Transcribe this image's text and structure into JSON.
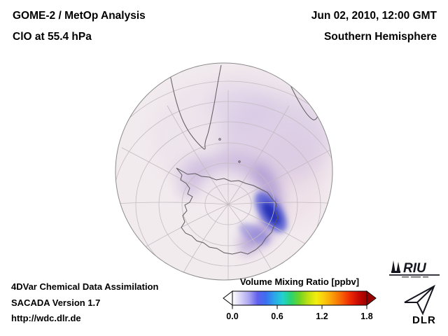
{
  "header": {
    "left": {
      "line1": "GOME-2 / MetOp Analysis",
      "line2": "ClO at 55.4 hPa"
    },
    "right": {
      "line1": "Jun 02, 2010, 12:00 GMT",
      "line2": "Southern Hemisphere"
    }
  },
  "colorbar": {
    "title": "Volume Mixing Ratio [ppbv]",
    "ticks": [
      "0.0",
      "0.6",
      "1.2",
      "1.8"
    ],
    "range": [
      0.0,
      1.8
    ],
    "under_color": "#ffffff",
    "over_color": "#9b0000",
    "gradient": [
      "#ffffff",
      "#d9d2f6",
      "#a9a4f2",
      "#5f5fee",
      "#3b6ff0",
      "#2ba6ea",
      "#22d2cf",
      "#2bd36e",
      "#71d323",
      "#bfe012",
      "#f3ee0e",
      "#fbc60b",
      "#f99708",
      "#f66205",
      "#ee2a03",
      "#c80a02",
      "#9b0000"
    ]
  },
  "footer": {
    "line1": "4DVar Chemical Data Assimilation",
    "line2": "SACADA Version 1.7",
    "line3": "http://wdc.dlr.de"
  },
  "logos": {
    "riu": {
      "text": "RIU"
    },
    "dlr": {
      "text": "DLR"
    }
  }
}
